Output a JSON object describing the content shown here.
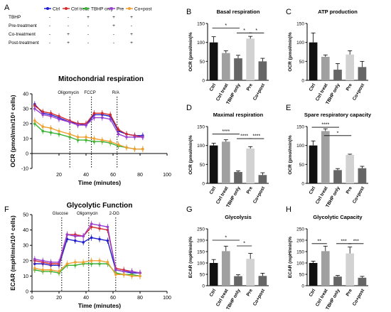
{
  "colors": {
    "Ctrl": "#1f1fd0",
    "Ctrl treat": "#d42a2a",
    "TBHP only": "#36b436",
    "Pre": "#9a3fd0",
    "Co+post": "#f0a030",
    "bar_black": "#111111",
    "bar_gray": "#a0a0a0",
    "bar_dark": "#666666",
    "bar_light": "#d2d2d2"
  },
  "legend": {
    "panel_letter": "A",
    "columns": [
      "Ctrl",
      "Ctrl treat",
      "TBHP only",
      "Pre",
      "Co+post"
    ],
    "rows": [
      {
        "label": "TBHP",
        "marks": [
          "-",
          "-",
          "+",
          "+",
          "+"
        ]
      },
      {
        "label": "Pre-treatment",
        "marks": [
          "-",
          "-",
          "-",
          "+",
          "-"
        ]
      },
      {
        "label": "Co-treatment",
        "marks": [
          "-",
          "+",
          "-",
          "-",
          "+"
        ]
      },
      {
        "label": "Post-treatment",
        "marks": [
          "-",
          "+",
          "-",
          "-",
          "+"
        ]
      }
    ]
  },
  "chart_data": [
    {
      "id": "A",
      "type": "line",
      "title": "Mitochondrial respiration",
      "xlabel": "Time (minutes)",
      "ylabel": "OCR (pmol/min/10⁴ cells)",
      "xlim": [
        0,
        100
      ],
      "ylim": [
        -10,
        40
      ],
      "xticks": [
        20,
        40,
        60,
        80,
        100
      ],
      "yticks": [
        -10,
        0,
        10,
        20,
        30,
        40
      ],
      "vlines": [
        {
          "x": 28,
          "label": "Oligomycin"
        },
        {
          "x": 44,
          "label": "FCCP"
        },
        {
          "x": 63,
          "label": "R/A"
        }
      ],
      "x": [
        2,
        8,
        14,
        20,
        28,
        34,
        40,
        46,
        52,
        58,
        64,
        70,
        76,
        82
      ],
      "series": [
        {
          "name": "Ctrl",
          "values": [
            33,
            27,
            26,
            24,
            21,
            20,
            19,
            26,
            26,
            25,
            15,
            13,
            12,
            12
          ],
          "err": [
            2,
            2,
            2,
            2,
            2,
            2,
            2,
            2,
            2,
            2,
            2,
            2,
            2,
            2
          ]
        },
        {
          "name": "Ctrl treat",
          "values": [
            32,
            28,
            27,
            25,
            22,
            20,
            20,
            27,
            27,
            26,
            16,
            13,
            12,
            11
          ],
          "err": [
            2,
            2,
            2,
            2,
            2,
            2,
            2,
            2,
            2,
            2,
            2,
            2,
            2,
            2
          ]
        },
        {
          "name": "TBHP only",
          "values": [
            20,
            15,
            14,
            13,
            11,
            9,
            9,
            8,
            8,
            7,
            5,
            4,
            3,
            3
          ],
          "err": [
            2,
            2,
            2,
            2,
            2,
            2,
            2,
            2,
            2,
            2,
            2,
            2,
            2,
            2
          ]
        },
        {
          "name": "Pre",
          "values": [
            30,
            26,
            25,
            23,
            21,
            19,
            19,
            24,
            24,
            23,
            13,
            11,
            11,
            11
          ],
          "err": [
            2,
            2,
            2,
            2,
            2,
            2,
            2,
            2,
            2,
            2,
            2,
            2,
            2,
            2
          ]
        },
        {
          "name": "Co+post",
          "values": [
            22,
            18,
            17,
            15,
            13,
            11,
            11,
            10,
            9,
            8,
            6,
            4,
            3,
            3
          ],
          "err": [
            2,
            2,
            2,
            2,
            2,
            2,
            2,
            2,
            2,
            2,
            2,
            2,
            2,
            2
          ]
        }
      ]
    },
    {
      "id": "F",
      "type": "line",
      "title": "Glycolytic Function",
      "xlabel": "Time (minutes)",
      "ylabel": "ECAR (mpH/min/10⁴ cells)",
      "xlim": [
        0,
        100
      ],
      "ylim": [
        0,
        50
      ],
      "xticks": [
        0,
        20,
        40,
        60,
        80,
        100
      ],
      "yticks": [
        0,
        10,
        20,
        30,
        40,
        50
      ],
      "vlines": [
        {
          "x": 22,
          "label": "Glucose"
        },
        {
          "x": 42,
          "label": "Oligomycin"
        },
        {
          "x": 62,
          "label": "2-DG"
        }
      ],
      "x": [
        2,
        8,
        14,
        20,
        26,
        32,
        38,
        44,
        50,
        56,
        62,
        68,
        74,
        80
      ],
      "series": [
        {
          "name": "Ctrl",
          "values": [
            18,
            18,
            17,
            17,
            34,
            33,
            32,
            35,
            34,
            33,
            14,
            13,
            12,
            12
          ],
          "err": [
            2,
            2,
            2,
            2,
            2,
            2,
            2,
            2,
            2,
            2,
            2,
            2,
            2,
            2
          ]
        },
        {
          "name": "Ctrl treat",
          "values": [
            20,
            19,
            18,
            18,
            37,
            37,
            36,
            42,
            41,
            40,
            15,
            14,
            13,
            12
          ],
          "err": [
            2,
            2,
            2,
            2,
            2,
            2,
            2,
            2,
            2,
            2,
            2,
            2,
            2,
            2
          ]
        },
        {
          "name": "TBHP only",
          "values": [
            14,
            13,
            13,
            12,
            17,
            17,
            18,
            18,
            18,
            18,
            12,
            11,
            11,
            10
          ],
          "err": [
            2,
            2,
            2,
            2,
            2,
            2,
            2,
            2,
            2,
            2,
            2,
            2,
            2,
            2
          ]
        },
        {
          "name": "Pre",
          "values": [
            21,
            20,
            19,
            19,
            37,
            36,
            36,
            44,
            43,
            42,
            14,
            13,
            13,
            12
          ],
          "err": [
            2,
            2,
            2,
            2,
            2,
            2,
            2,
            2,
            2,
            2,
            2,
            2,
            2,
            2
          ]
        },
        {
          "name": "Co+post",
          "values": [
            15,
            14,
            14,
            13,
            18,
            19,
            19,
            20,
            20,
            19,
            11,
            11,
            10,
            10
          ],
          "err": [
            2,
            2,
            2,
            2,
            2,
            2,
            2,
            2,
            2,
            2,
            2,
            2,
            2,
            2
          ]
        }
      ]
    },
    {
      "id": "B",
      "type": "bar",
      "title": "Basal respiration",
      "ylabel": "OCR (pmol/min)%",
      "ylim": [
        0,
        150
      ],
      "yticks": [
        0,
        50,
        100,
        150
      ],
      "categories": [
        "Ctrl",
        "Ctrl treat",
        "TBHP only",
        "Pre",
        "Co+post"
      ],
      "values": [
        100,
        72,
        58,
        110,
        50
      ],
      "err": [
        15,
        6,
        8,
        6,
        8
      ],
      "sig": [
        {
          "from": 0,
          "to": 2,
          "level": 138,
          "label": "*"
        },
        {
          "from": 2,
          "to": 3,
          "level": 125,
          "label": "*"
        },
        {
          "from": 3,
          "to": 4,
          "level": 125,
          "label": "*"
        }
      ]
    },
    {
      "id": "C",
      "type": "bar",
      "title": "ATP production",
      "ylabel": "OCR (pmol/min)%",
      "ylim": [
        0,
        150
      ],
      "yticks": [
        0,
        50,
        100,
        150
      ],
      "categories": [
        "Ctrl",
        "Ctrl treat",
        "TBHP only",
        "Pre",
        "Co+post"
      ],
      "values": [
        100,
        62,
        28,
        68,
        35
      ],
      "err": [
        25,
        5,
        16,
        10,
        15
      ],
      "sig": []
    },
    {
      "id": "D",
      "type": "bar",
      "title": "Maximal respiration",
      "ylabel": "OCR (pmol/min)%",
      "ylim": [
        0,
        150
      ],
      "yticks": [
        0,
        50,
        100,
        150
      ],
      "categories": [
        "Ctrl",
        "Ctrl treat",
        "TBHP only",
        "Pre",
        "Co+post"
      ],
      "values": [
        100,
        110,
        30,
        92,
        22
      ],
      "err": [
        6,
        5,
        3,
        5,
        6
      ],
      "sig": [
        {
          "from": 0,
          "to": 2,
          "level": 130,
          "label": "****"
        },
        {
          "from": 2,
          "to": 3,
          "level": 118,
          "label": "****"
        },
        {
          "from": 3,
          "to": 4,
          "level": 118,
          "label": "****"
        }
      ]
    },
    {
      "id": "E",
      "type": "bar",
      "title": "Spare respiratory capacity",
      "ylabel": "OCR (pmol/min)%",
      "ylim": [
        0,
        150
      ],
      "yticks": [
        0,
        50,
        100,
        150
      ],
      "categories": [
        "Ctrl",
        "Ctrl treat",
        "TBHP only",
        "Pre",
        "Co+post"
      ],
      "values": [
        100,
        138,
        35,
        75,
        40
      ],
      "err": [
        12,
        6,
        4,
        2,
        5
      ],
      "sig": [
        {
          "from": 0,
          "to": 2,
          "level": 148,
          "label": "****"
        },
        {
          "from": 1,
          "to": 3,
          "level": 126,
          "label": "*"
        }
      ]
    },
    {
      "id": "G",
      "type": "bar",
      "title": "Glycolysis",
      "ylabel": "ECAR (mpH/min)%",
      "ylim": [
        0,
        250
      ],
      "yticks": [
        0,
        50,
        100,
        150,
        200,
        250
      ],
      "categories": [
        "Ctrl",
        "Ctrl treat",
        "TBHP only",
        "Pre",
        "Co+post"
      ],
      "values": [
        100,
        152,
        42,
        118,
        43
      ],
      "err": [
        15,
        22,
        6,
        24,
        12
      ],
      "sig": [
        {
          "from": 0,
          "to": 2,
          "level": 200,
          "label": "*"
        },
        {
          "from": 2,
          "to": 3,
          "level": 175,
          "label": "*"
        }
      ]
    },
    {
      "id": "H",
      "type": "bar",
      "title": "Glycolytic Capacity",
      "ylabel": "ECAR (mpH/min)%",
      "ylim": [
        0,
        250
      ],
      "yticks": [
        0,
        50,
        100,
        150,
        200,
        250
      ],
      "categories": [
        "Ctrl",
        "Ctrl treat",
        "TBHP only",
        "Pre",
        "Co+post"
      ],
      "values": [
        100,
        152,
        40,
        142,
        35
      ],
      "err": [
        8,
        22,
        5,
        28,
        6
      ],
      "sig": [
        {
          "from": 0,
          "to": 1,
          "level": 185,
          "label": "**"
        },
        {
          "from": 2,
          "to": 3,
          "level": 185,
          "label": "***"
        },
        {
          "from": 3,
          "to": 4,
          "level": 185,
          "label": "***"
        }
      ]
    }
  ]
}
